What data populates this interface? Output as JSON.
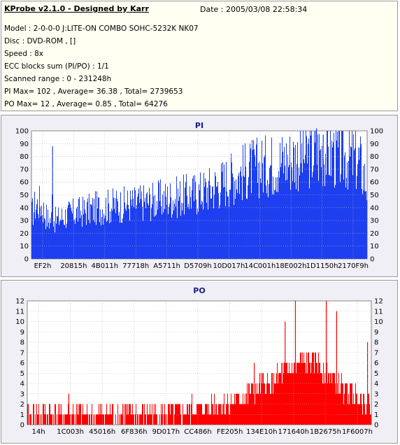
{
  "info": {
    "title": "KProbe v2.1.0 - Designed by Karr",
    "date": "Date : 2005/03/08 22:58:34",
    "lines": [
      "Model : 2-0-0-0 J:LITE-ON COMBO SOHC-5232K NK07",
      "Disc : DVD-ROM ,  []",
      "Speed : 8x",
      "ECC blocks sum (PI/PO) : 1/1",
      "Scanned range : 0 - 231248h",
      "PI Max= 102 , Average= 36.38 , Total= 2739653",
      "PO Max= 12 , Average= 0.85 , Total= 64276"
    ]
  },
  "colors": {
    "pi_fill": "#1d3ff0",
    "po_fill": "#ff0000",
    "plot_bg": "#ffffff",
    "grid": "#b0b0b0",
    "title": "#1a1a8a"
  },
  "chart_data": [
    {
      "type": "area",
      "title": "PI",
      "ylim": [
        0,
        100
      ],
      "yticks": [
        0,
        10,
        20,
        30,
        40,
        50,
        60,
        70,
        80,
        90,
        100
      ],
      "xtick_labels": [
        "EF2h",
        "20815h",
        "4B011h",
        "77718h",
        "A5711h",
        "D5709h",
        "10D017h",
        "14C001h",
        "18E002h",
        "1D1150h",
        "2170F9h"
      ],
      "grid": true,
      "x": [
        0,
        0.01,
        0.025,
        0.05,
        0.06,
        0.062,
        0.064,
        0.07,
        0.1,
        0.15,
        0.2,
        0.25,
        0.3,
        0.35,
        0.4,
        0.45,
        0.5,
        0.55,
        0.6,
        0.65,
        0.7,
        0.75,
        0.8,
        0.85,
        0.88,
        0.9,
        0.93,
        0.96,
        0.98,
        1.0
      ],
      "values": [
        35,
        42,
        44,
        30,
        32,
        88,
        33,
        30,
        34,
        37,
        40,
        42,
        43,
        45,
        47,
        49,
        52,
        57,
        64,
        70,
        73,
        77,
        80,
        83,
        84,
        82,
        80,
        79,
        75,
        58
      ],
      "peaks": {
        "x": [
          0.062,
          0.82,
          0.85,
          0.87,
          0.9
        ],
        "values": [
          88,
          96,
          102,
          97,
          91
        ]
      }
    },
    {
      "type": "area",
      "title": "PO",
      "ylim": [
        0,
        12
      ],
      "yticks": [
        0,
        1,
        2,
        3,
        4,
        5,
        6,
        7,
        8,
        9,
        10,
        11,
        12
      ],
      "xtick_labels": [
        "14h",
        "1C003h",
        "45016h",
        "6F836h",
        "9D017h",
        "CC486h",
        "FE205h",
        "134E10h",
        "171640h",
        "1B2675h",
        "1F6007h"
      ],
      "grid": true,
      "x": [
        0,
        0.1,
        0.2,
        0.3,
        0.4,
        0.5,
        0.55,
        0.6,
        0.65,
        0.7,
        0.75,
        0.8,
        0.85,
        0.9,
        0.95,
        1.0
      ],
      "values": [
        1,
        1,
        1,
        1,
        1,
        1.5,
        2,
        2,
        3,
        4,
        5,
        6,
        6,
        4,
        3,
        2
      ],
      "peaks": {
        "x": [
          0.12,
          0.66,
          0.75,
          0.78,
          0.87,
          0.9,
          0.99
        ],
        "values": [
          3,
          6,
          10,
          12,
          12,
          11,
          8
        ]
      }
    }
  ]
}
